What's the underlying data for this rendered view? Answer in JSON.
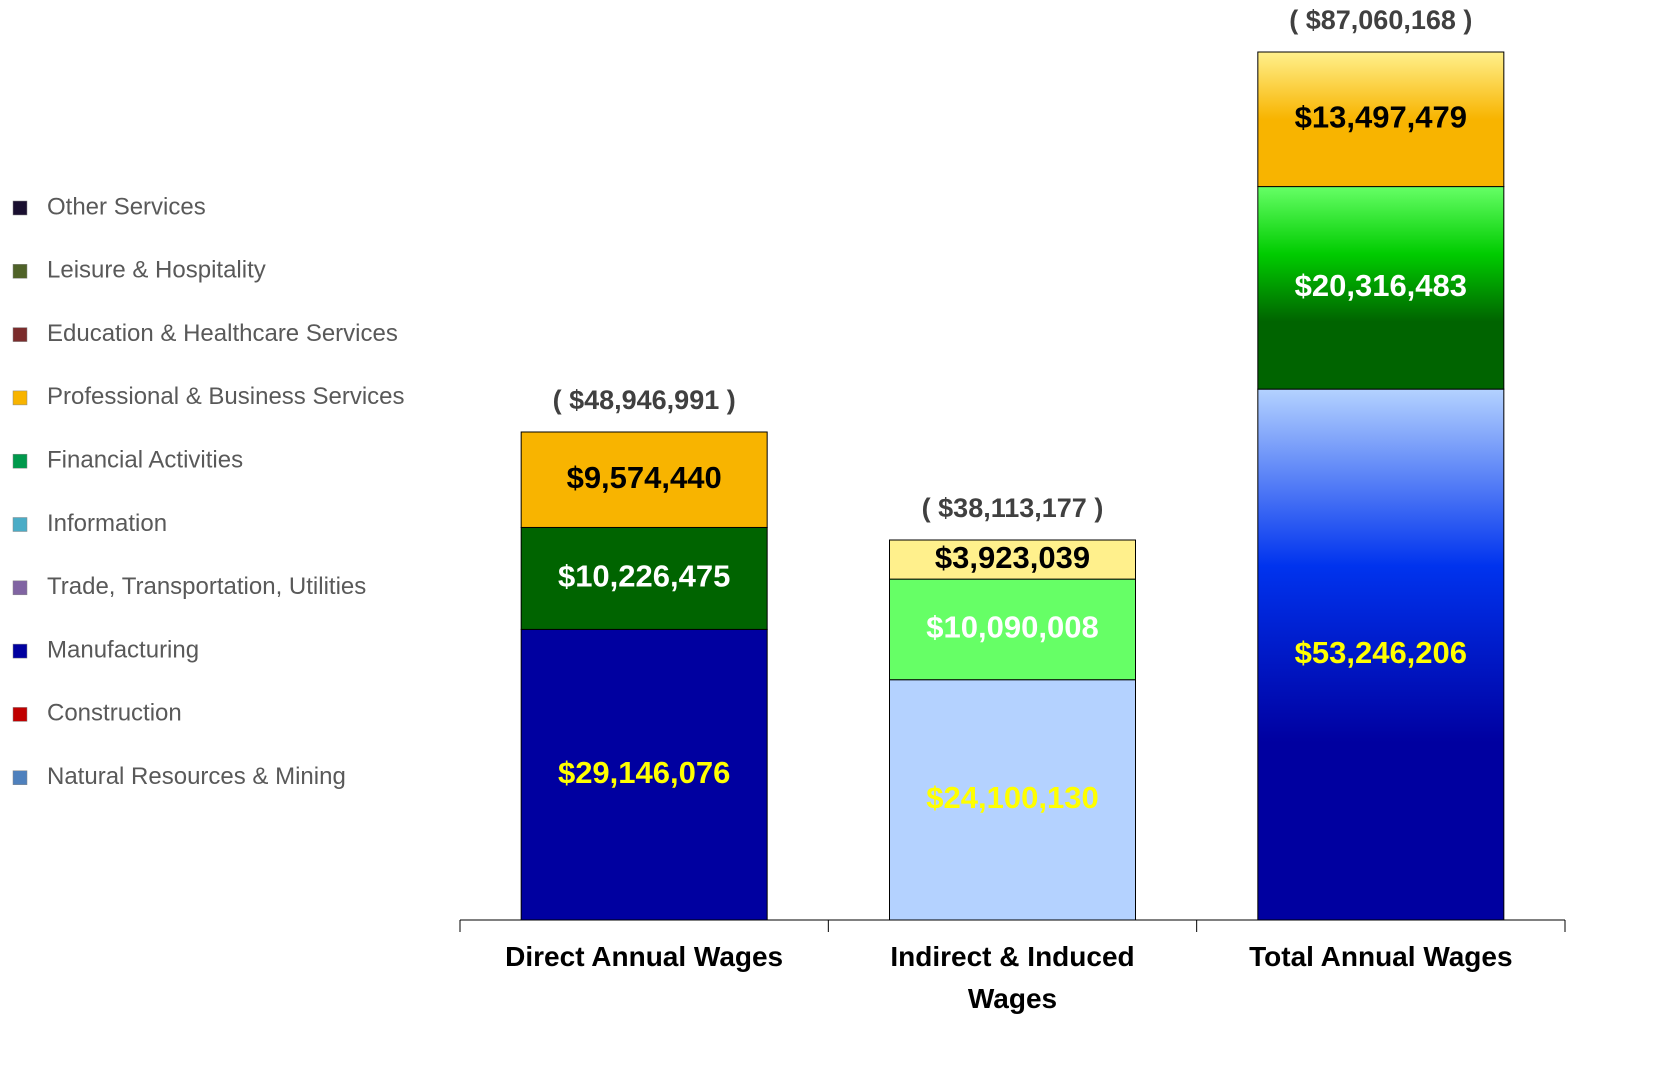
{
  "chart_data": {
    "type": "stacked_bar",
    "categories": [
      "Direct Annual Wages",
      "Indirect & Induced Wages",
      "Total Annual Wages"
    ],
    "series": [
      {
        "name": "Natural Resources & Mining",
        "color": "#4F81BD",
        "values": [
          null,
          null,
          null
        ]
      },
      {
        "name": "Construction",
        "color": "#C00000",
        "values": [
          null,
          null,
          null
        ]
      },
      {
        "name": "Manufacturing",
        "color": "#0000A0",
        "colors": [
          "#0000A0",
          "#B4D2FF",
          [
            "#B4D2FF",
            "#0033EE",
            "#0000A0",
            "#0000A0"
          ]
        ],
        "label_color": "#FFFF00",
        "values": [
          29146076,
          24100130,
          53246206
        ],
        "value_labels": [
          "$29,146,076",
          "$24,100,130",
          "$53,246,206"
        ]
      },
      {
        "name": "Trade, Transportation, Utilities",
        "color": "#8064A2",
        "values": [
          null,
          null,
          null
        ]
      },
      {
        "name": "Information",
        "color": "#4BACC6",
        "values": [
          null,
          null,
          null
        ]
      },
      {
        "name": "Financial Activities",
        "color": "#00994C",
        "colors": [
          "#006400",
          "#66FF66",
          [
            "#66FF66",
            "#00CC00",
            "#006400",
            "#006400"
          ]
        ],
        "label_color": "#FFFFFF",
        "values": [
          10226475,
          10090008,
          20316483
        ],
        "value_labels": [
          "$10,226,475",
          "$10,090,008",
          "$20,316,483"
        ]
      },
      {
        "name": "Professional & Business Services",
        "color": "#F8B400",
        "colors": [
          "#F8B400",
          "#FFF08C",
          [
            "#FFF08C",
            "#F8B400",
            "#F8B400"
          ]
        ],
        "label_color": "#000000",
        "values": [
          9574440,
          3923039,
          13497479
        ],
        "value_labels": [
          "$9,574,440",
          "$3,923,039",
          "$13,497,479"
        ]
      },
      {
        "name": "Education & Healthcare Services",
        "color": "#7B2C2C",
        "values": [
          null,
          null,
          null
        ]
      },
      {
        "name": "Leisure & Hospitality",
        "color": "#4F6228",
        "values": [
          null,
          null,
          null
        ]
      },
      {
        "name": "Other Services",
        "color": "#1A1030",
        "values": [
          null,
          null,
          null
        ]
      }
    ],
    "totals": [
      48946991,
      38113177,
      87060168
    ],
    "total_labels": [
      "( $48,946,991 )",
      "( $38,113,177 )",
      "( $87,060,168 )"
    ],
    "legend": "left"
  }
}
